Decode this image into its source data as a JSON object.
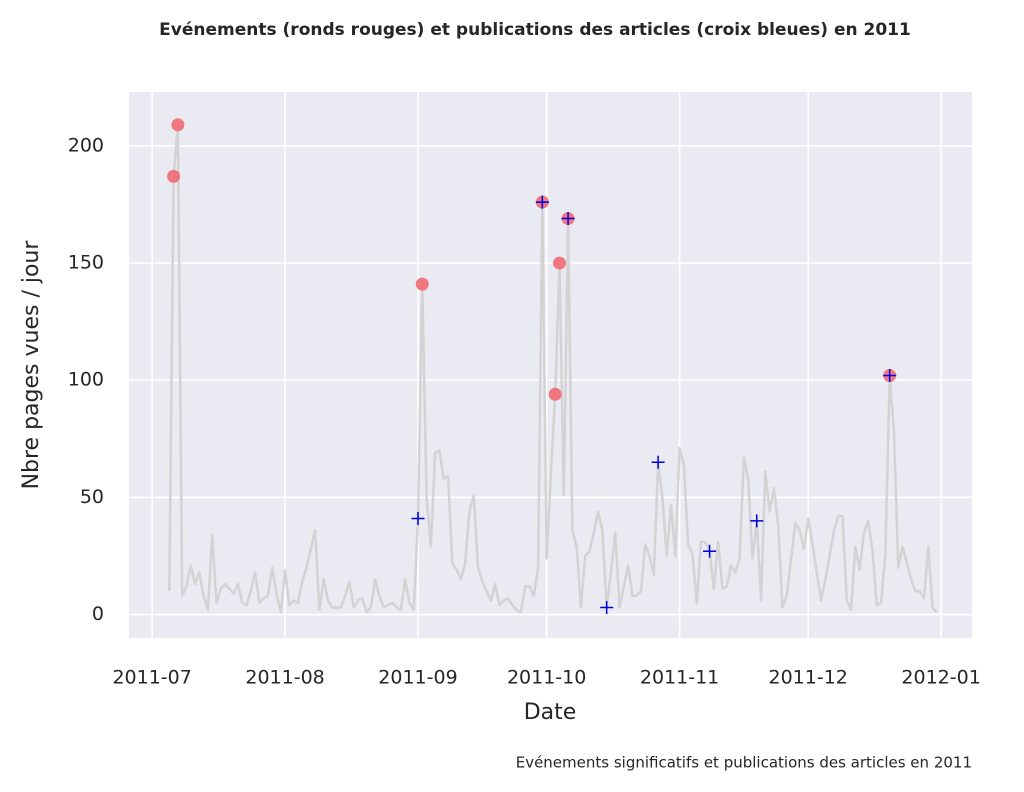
{
  "chart_data": {
    "type": "line",
    "title": "Evénements (ronds rouges) et publications des articles (croix bleues) en 2011",
    "caption": "Evénements significatifs et publications des articles en 2011",
    "x_label": "Date",
    "y_label": "Nbre pages vues / jour",
    "xlim": [
      -5.4,
      191.2
    ],
    "xticks": [
      {
        "value": 0,
        "label": "2011-07"
      },
      {
        "value": 31,
        "label": "2011-08"
      },
      {
        "value": 62,
        "label": "2011-09"
      },
      {
        "value": 92,
        "label": "2011-10"
      },
      {
        "value": 123,
        "label": "2011-11"
      },
      {
        "value": 153,
        "label": "2011-12"
      },
      {
        "value": 184,
        "label": "2012-01"
      }
    ],
    "ylim": [
      -10,
      223
    ],
    "yticks": [
      0,
      50,
      100,
      150,
      200
    ],
    "grid": true,
    "series": [
      {
        "color": "#d3d3d3",
        "marker": "line",
        "x": [
          4,
          5,
          6,
          7,
          8,
          9,
          10,
          11,
          12,
          13,
          14,
          15,
          16,
          17,
          18,
          19,
          20,
          21,
          22,
          23,
          24,
          25,
          26,
          27,
          28,
          29,
          30,
          31,
          32,
          33,
          34,
          35,
          36,
          37,
          38,
          39,
          40,
          41,
          42,
          43,
          44,
          45,
          46,
          47,
          48,
          49,
          50,
          51,
          52,
          53,
          54,
          55,
          56,
          57,
          58,
          59,
          60,
          61,
          62,
          63,
          64,
          65,
          66,
          67,
          68,
          69,
          70,
          71,
          72,
          73,
          74,
          75,
          76,
          77,
          78,
          79,
          80,
          81,
          82,
          83,
          84,
          85,
          86,
          87,
          88,
          89,
          90,
          91,
          92,
          93,
          94,
          95,
          96,
          97,
          98,
          99,
          100,
          101,
          102,
          103,
          104,
          105,
          106,
          107,
          108,
          109,
          110,
          111,
          112,
          113,
          114,
          115,
          116,
          117,
          118,
          119,
          120,
          121,
          122,
          123,
          124,
          125,
          126,
          127,
          128,
          129,
          130,
          131,
          132,
          133,
          134,
          135,
          136,
          137,
          138,
          139,
          140,
          141,
          142,
          143,
          144,
          145,
          146,
          147,
          148,
          149,
          150,
          151,
          152,
          153,
          154,
          155,
          156,
          157,
          158,
          159,
          160,
          161,
          162,
          163,
          164,
          165,
          166,
          167,
          168,
          169,
          170,
          171,
          172,
          173,
          174,
          175,
          176,
          177,
          178,
          179,
          180,
          181,
          182,
          183
        ],
        "values": [
          10,
          187,
          209,
          8,
          12,
          21,
          13,
          18,
          8,
          2,
          34,
          5,
          11,
          13,
          11,
          9,
          13,
          5,
          4,
          10,
          18,
          5,
          7,
          8,
          20,
          9,
          1,
          19,
          4,
          6,
          5,
          14,
          20,
          28,
          36,
          2,
          15,
          6,
          3,
          3,
          3,
          8,
          14,
          3,
          6,
          7,
          1,
          3,
          15,
          8,
          3,
          4,
          5,
          3,
          2,
          15,
          5,
          2,
          41,
          141,
          50,
          29,
          69,
          70,
          58,
          59,
          22,
          19,
          15,
          22,
          44,
          51,
          20,
          14,
          10,
          6,
          13,
          4,
          6,
          7,
          4,
          2,
          1,
          12,
          12,
          8,
          20,
          176,
          24,
          60,
          94,
          150,
          51,
          169,
          36,
          29,
          3,
          25,
          27,
          35,
          44,
          36,
          3,
          18,
          35,
          3,
          12,
          21,
          8,
          8,
          10,
          30,
          25,
          17,
          65,
          50,
          25,
          47,
          25,
          71,
          64,
          30,
          26,
          5,
          31,
          31,
          27,
          11,
          31,
          11,
          12,
          21,
          18,
          24,
          67,
          58,
          24,
          40,
          6,
          61,
          44,
          54,
          38,
          3,
          8,
          24,
          39,
          36,
          28,
          41,
          30,
          18,
          6,
          15,
          25,
          36,
          42,
          42,
          6,
          2,
          29,
          19,
          35,
          40,
          27,
          4,
          5,
          26,
          102,
          78,
          20,
          29,
          22,
          15,
          10,
          10,
          7,
          29,
          3,
          1
        ]
      },
      {
        "color": "#f07078",
        "marker": "dot",
        "x": [
          5,
          6,
          63,
          91,
          94,
          95,
          97,
          172
        ],
        "values": [
          187,
          209,
          141,
          176,
          94,
          150,
          169,
          102
        ]
      },
      {
        "color": "#0000dd",
        "marker": "cross",
        "x": [
          62,
          91,
          97,
          106,
          118,
          130,
          141,
          172
        ],
        "values": [
          41,
          176,
          169,
          3,
          65,
          27,
          40,
          102
        ]
      }
    ]
  }
}
